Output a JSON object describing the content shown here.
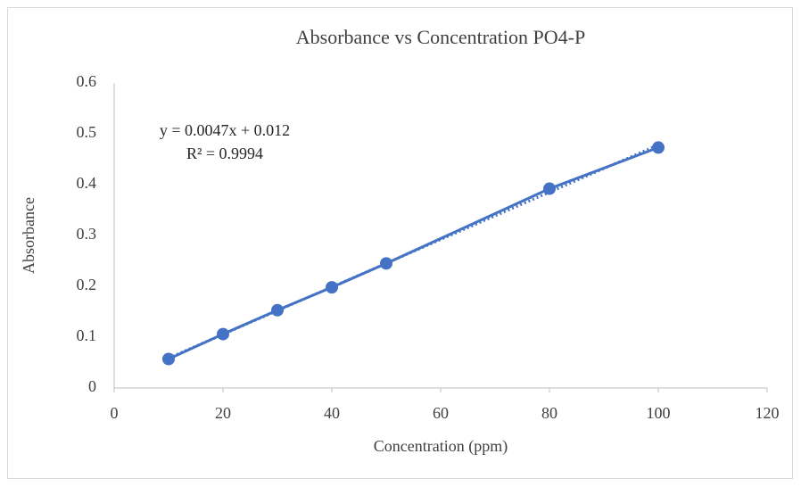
{
  "chart_data": {
    "type": "scatter",
    "title": "Absorbance vs Concentration PO4-P",
    "x_label": "Concentration (ppm)",
    "y_label": "Absorbance",
    "annotations": [
      "y = 0.0047x + 0.012",
      "R² = 0.9994"
    ],
    "series": [
      {
        "name": "Absorbance",
        "color": "#4472c4",
        "x": [
          10,
          20,
          30,
          40,
          50,
          80,
          100
        ],
        "values": [
          0.057,
          0.106,
          0.153,
          0.198,
          0.245,
          0.392,
          0.473
        ]
      }
    ],
    "trendline": "linear",
    "xlim": [
      0,
      120
    ],
    "xticks": [
      0,
      20,
      40,
      60,
      80,
      100,
      120
    ],
    "ylim": [
      0,
      0.6
    ],
    "yticks": [
      0,
      0.1,
      0.2,
      0.3,
      0.4,
      0.5,
      0.6
    ],
    "grid": false
  }
}
